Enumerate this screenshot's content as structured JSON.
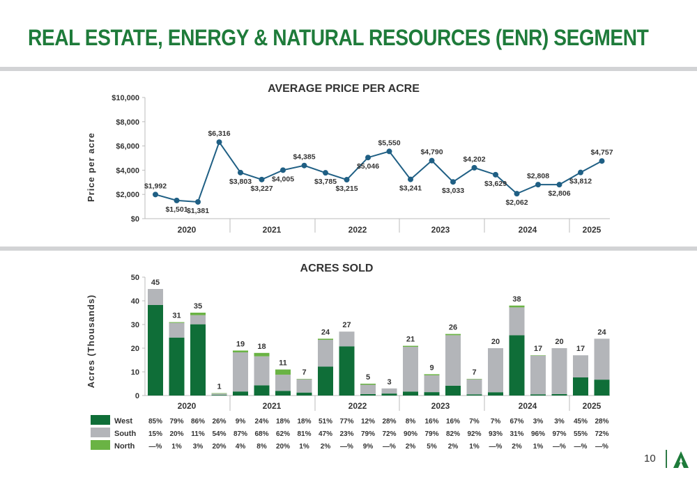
{
  "title": "REAL ESTATE, ENERGY & NATURAL RESOURCES (ENR) SEGMENT",
  "page_number": "10",
  "colors": {
    "title": "#1e7b3a",
    "line": "#1f5f84",
    "west": "#0f6e38",
    "south": "#b3b5b9",
    "north": "#6ab344",
    "band": "#d2d3d5"
  },
  "logo_icon": "tree-logo-icon",
  "chart_data": [
    {
      "type": "line",
      "title": "AVERAGE PRICE PER ACRE",
      "ylabel": "Price per acre",
      "xlabel": "",
      "ylim": [
        0,
        10000
      ],
      "y_ticks": [
        "$0",
        "$2,000",
        "$4,000",
        "$6,000",
        "$8,000",
        "$10,000"
      ],
      "year_labels": [
        "2020",
        "2021",
        "2022",
        "2023",
        "2024",
        "2025"
      ],
      "values": [
        1992,
        1501,
        1381,
        6316,
        3803,
        3227,
        4005,
        4385,
        3785,
        3215,
        5046,
        5550,
        3241,
        4790,
        3033,
        4202,
        3629,
        2062,
        2808,
        2806,
        3812,
        4757
      ],
      "labels": [
        "$1,992",
        "$1,501",
        "$1,381",
        "$6,316",
        "$3,803",
        "$3,227",
        "$4,005",
        "$4,385",
        "$3,785",
        "$3,215",
        "$5,046",
        "$5,550",
        "$3,241",
        "$4,790",
        "$3,033",
        "$4,202",
        "$3,629",
        "$2,062",
        "$2,808",
        "$2,806",
        "$3,812",
        "$4,757"
      ],
      "grid": false
    },
    {
      "type": "bar",
      "stacked": true,
      "title": "ACRES SOLD",
      "ylabel": "Acres (Thousands)",
      "xlabel": "",
      "ylim": [
        0,
        50
      ],
      "y_ticks": [
        "0",
        "10",
        "20",
        "30",
        "40",
        "50"
      ],
      "year_labels": [
        "2020",
        "2021",
        "2022",
        "2023",
        "2024",
        "2025"
      ],
      "totals": [
        45,
        31,
        35,
        1,
        19,
        18,
        11,
        7,
        24,
        27,
        5,
        3,
        21,
        9,
        26,
        7,
        20,
        38,
        17,
        20,
        17,
        24
      ],
      "total_labels": [
        "45",
        "31",
        "35",
        "1",
        "19",
        "18",
        "11",
        "7",
        "24",
        "27",
        "5",
        "3",
        "21",
        "9",
        "26",
        "7",
        "20",
        "38",
        "17",
        "20",
        "17",
        "24"
      ],
      "series": [
        {
          "name": "West",
          "pct": [
            85,
            79,
            86,
            26,
            9,
            24,
            18,
            18,
            51,
            77,
            12,
            28,
            8,
            16,
            16,
            7,
            7,
            67,
            3,
            3,
            45,
            28
          ],
          "pct_labels": [
            "85%",
            "79%",
            "86%",
            "26%",
            "9%",
            "24%",
            "18%",
            "18%",
            "51%",
            "77%",
            "12%",
            "28%",
            "8%",
            "16%",
            "16%",
            "7%",
            "7%",
            "67%",
            "3%",
            "3%",
            "45%",
            "28%"
          ]
        },
        {
          "name": "South",
          "pct": [
            15,
            20,
            11,
            54,
            87,
            68,
            62,
            81,
            47,
            23,
            79,
            72,
            90,
            79,
            82,
            92,
            93,
            31,
            96,
            97,
            55,
            72
          ],
          "pct_labels": [
            "15%",
            "20%",
            "11%",
            "54%",
            "87%",
            "68%",
            "62%",
            "81%",
            "47%",
            "23%",
            "79%",
            "72%",
            "90%",
            "79%",
            "82%",
            "92%",
            "93%",
            "31%",
            "96%",
            "97%",
            "55%",
            "72%"
          ]
        },
        {
          "name": "North",
          "pct": [
            0,
            1,
            3,
            20,
            4,
            8,
            20,
            1,
            2,
            0,
            9,
            0,
            2,
            5,
            2,
            1,
            0,
            2,
            1,
            0,
            0,
            0
          ],
          "pct_labels": [
            "—%",
            "1%",
            "3%",
            "20%",
            "4%",
            "8%",
            "20%",
            "1%",
            "2%",
            "—%",
            "9%",
            "—%",
            "2%",
            "5%",
            "2%",
            "1%",
            "—%",
            "2%",
            "1%",
            "—%",
            "—%",
            "—%"
          ]
        }
      ],
      "legend_position": "bottom-left table"
    }
  ]
}
